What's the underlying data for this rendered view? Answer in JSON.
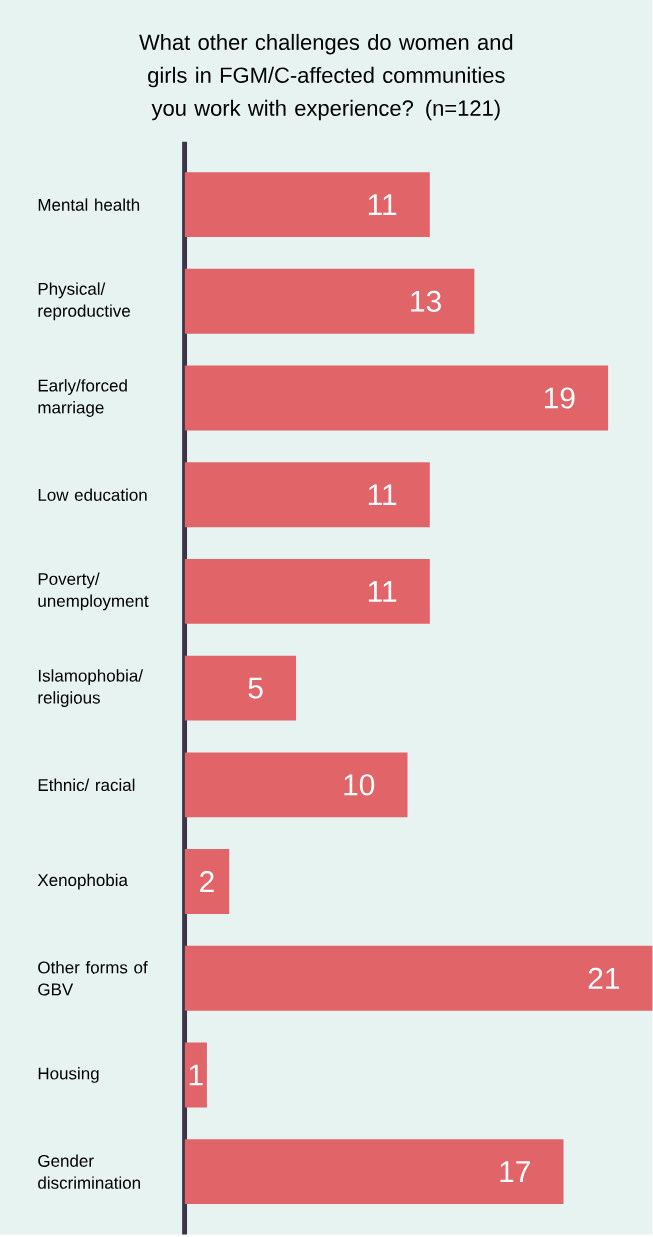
{
  "chart_data": {
    "type": "bar",
    "orientation": "horizontal",
    "title": "What other challenges do women and girls in FGM/C-affected communities you work with experience? (n=121)",
    "categories": [
      "Mental health",
      "Physical/ reproductive",
      "Early/forced marriage",
      "Low education",
      "Poverty/ unemployment",
      "Islamophobia/ religious",
      "Ethnic/ racial",
      "Xenophobia",
      "Other forms of GBV",
      "Housing",
      "Gender discrimination"
    ],
    "values": [
      11,
      13,
      19,
      11,
      11,
      5,
      10,
      2,
      21,
      1,
      17
    ],
    "color": "#e06468",
    "data_labels": true
  }
}
